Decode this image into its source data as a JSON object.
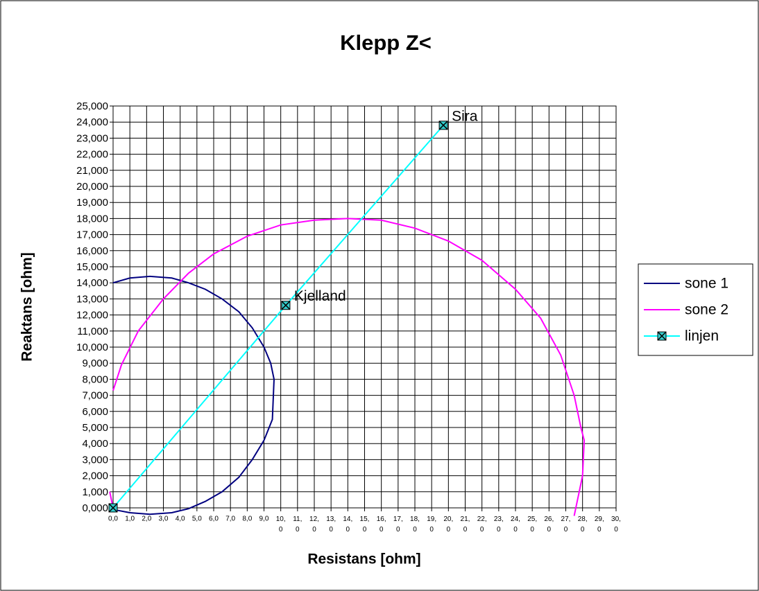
{
  "chart_data": {
    "type": "line",
    "title": "Klepp Z<",
    "x_label": "Resistans [ohm]",
    "y_label": "Reaktans [ohm]",
    "xlim": [
      0,
      30
    ],
    "ylim": [
      0,
      25
    ],
    "grid": true,
    "legend": "right",
    "xticks": [
      {
        "value": 0,
        "label": "0,0"
      },
      {
        "value": 1,
        "label": "1,0"
      },
      {
        "value": 2,
        "label": "2,0"
      },
      {
        "value": 3,
        "label": "3,0"
      },
      {
        "value": 4,
        "label": "4,0"
      },
      {
        "value": 5,
        "label": "5,0"
      },
      {
        "value": 6,
        "label": "6,0"
      },
      {
        "value": 7,
        "label": "7,0"
      },
      {
        "value": 8,
        "label": "8,0"
      },
      {
        "value": 9,
        "label": "9,0"
      },
      {
        "value": 10,
        "label": "10,0"
      },
      {
        "value": 11,
        "label": "11,0"
      },
      {
        "value": 12,
        "label": "12,0"
      },
      {
        "value": 13,
        "label": "13,0"
      },
      {
        "value": 14,
        "label": "14,0"
      },
      {
        "value": 15,
        "label": "15,0"
      },
      {
        "value": 16,
        "label": "16,0"
      },
      {
        "value": 17,
        "label": "17,0"
      },
      {
        "value": 18,
        "label": "18,0"
      },
      {
        "value": 19,
        "label": "19,0"
      },
      {
        "value": 20,
        "label": "20,0"
      },
      {
        "value": 21,
        "label": "21,0"
      },
      {
        "value": 22,
        "label": "22,0"
      },
      {
        "value": 23,
        "label": "23,0"
      },
      {
        "value": 24,
        "label": "24,0"
      },
      {
        "value": 25,
        "label": "25,0"
      },
      {
        "value": 26,
        "label": "26,0"
      },
      {
        "value": 27,
        "label": "27,0"
      },
      {
        "value": 28,
        "label": "28,0"
      },
      {
        "value": 29,
        "label": "29,0"
      },
      {
        "value": 30,
        "label": "30,0"
      }
    ],
    "yticks": [
      {
        "value": 0,
        "label": "0,000"
      },
      {
        "value": 1,
        "label": "1,000"
      },
      {
        "value": 2,
        "label": "2,000"
      },
      {
        "value": 3,
        "label": "3,000"
      },
      {
        "value": 4,
        "label": "4,000"
      },
      {
        "value": 5,
        "label": "5,000"
      },
      {
        "value": 6,
        "label": "6,000"
      },
      {
        "value": 7,
        "label": "7,000"
      },
      {
        "value": 8,
        "label": "8,000"
      },
      {
        "value": 9,
        "label": "9,000"
      },
      {
        "value": 10,
        "label": "10,000"
      },
      {
        "value": 11,
        "label": "11,000"
      },
      {
        "value": 12,
        "label": "12,000"
      },
      {
        "value": 13,
        "label": "13,000"
      },
      {
        "value": 14,
        "label": "14,000"
      },
      {
        "value": 15,
        "label": "15,000"
      },
      {
        "value": 16,
        "label": "16,000"
      },
      {
        "value": 17,
        "label": "17,000"
      },
      {
        "value": 18,
        "label": "18,000"
      },
      {
        "value": 19,
        "label": "19,000"
      },
      {
        "value": 20,
        "label": "20,000"
      },
      {
        "value": 21,
        "label": "21,000"
      },
      {
        "value": 22,
        "label": "22,000"
      },
      {
        "value": 23,
        "label": "23,000"
      },
      {
        "value": 24,
        "label": "24,000"
      },
      {
        "value": 25,
        "label": "25,000"
      }
    ],
    "series": [
      {
        "name": "sone 1",
        "color": "#000080",
        "marker": false,
        "x": [
          0,
          1,
          2.2,
          3.5,
          4.5,
          5.5,
          6.5,
          7.5,
          8.3,
          9.0,
          9.4,
          9.6,
          9.5,
          9.0,
          8.3,
          7.5,
          6.5,
          5.5,
          4.5,
          3.5,
          2.2,
          1,
          0
        ],
        "values": [
          14.0,
          14.3,
          14.4,
          14.3,
          14.0,
          13.6,
          13.0,
          12.2,
          11.2,
          10.0,
          9.0,
          8.0,
          5.5,
          4.2,
          3.0,
          1.9,
          1.0,
          0.4,
          -0.05,
          -0.3,
          -0.4,
          -0.3,
          -0.1
        ]
      },
      {
        "name": "sone 2",
        "color": "#ff00ff",
        "marker": false,
        "x": [
          0,
          0.5,
          1.5,
          3,
          4.5,
          6,
          8,
          10,
          12,
          14,
          16,
          18,
          20,
          22,
          24,
          25.5,
          26.7,
          27.5,
          27.9,
          28.1,
          28.0,
          27.7,
          27.5,
          null,
          -0.2,
          0
        ],
        "values": [
          7.3,
          8.9,
          11.0,
          13.0,
          14.6,
          15.8,
          16.9,
          17.6,
          17.9,
          18.0,
          17.9,
          17.4,
          16.6,
          15.4,
          13.6,
          11.8,
          9.5,
          7.0,
          5.0,
          4.2,
          2.0,
          0.5,
          -0.5,
          null,
          1.0,
          0
        ]
      },
      {
        "name": "linjen",
        "color": "#00ffff",
        "marker": true,
        "marker_color": "#33cccc",
        "x": [
          0,
          10.3,
          19.7
        ],
        "values": [
          0,
          12.6,
          23.8
        ],
        "point_labels": [
          null,
          "Kjelland",
          "Sira"
        ]
      }
    ]
  }
}
